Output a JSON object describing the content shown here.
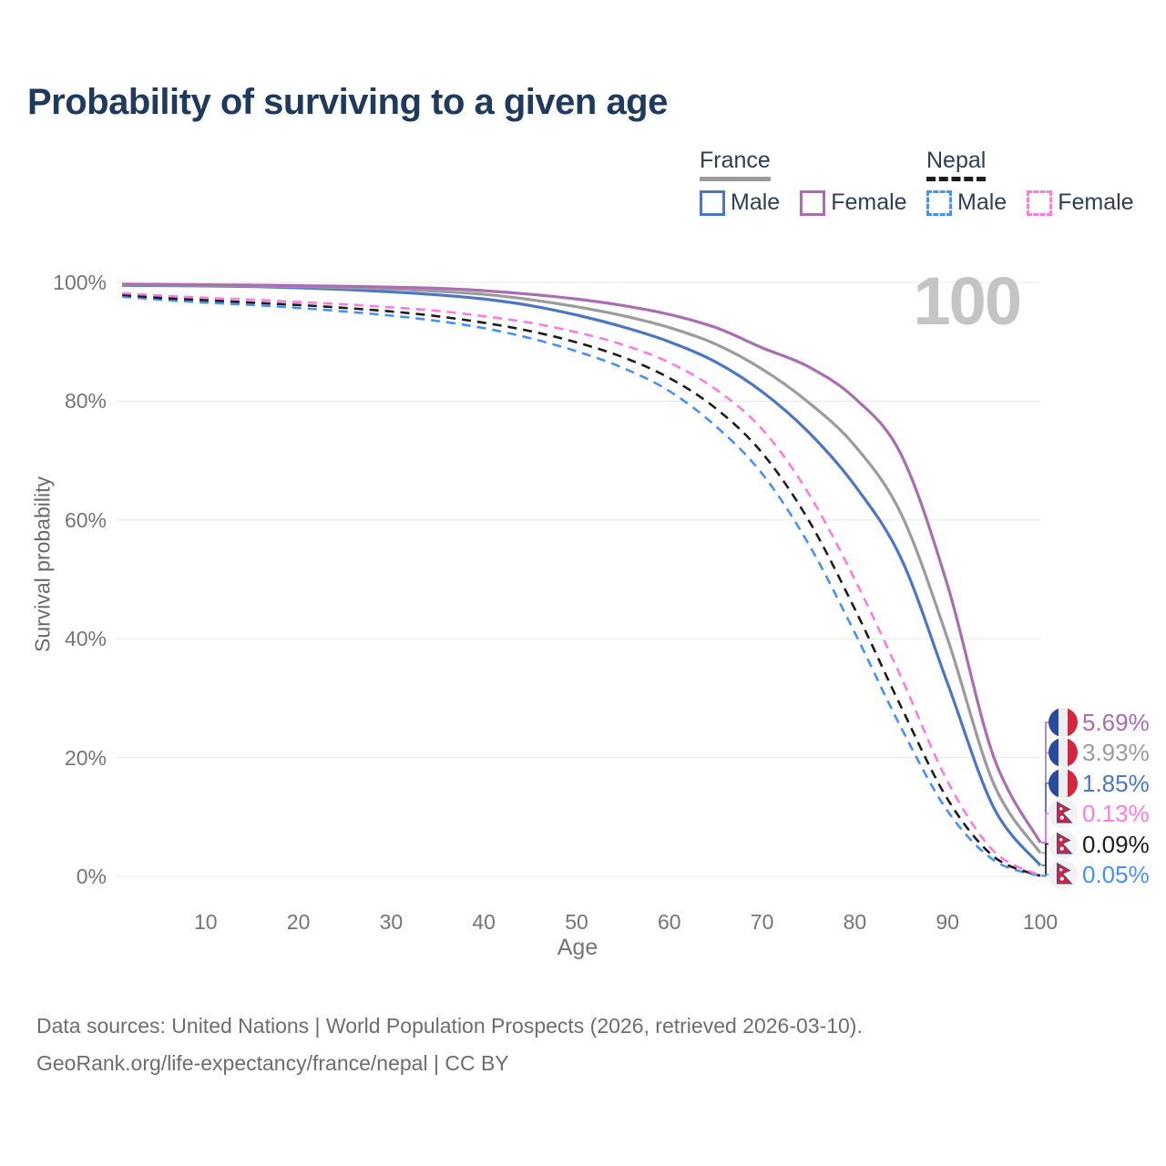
{
  "title": "Probability of surviving to a given age",
  "watermark": "100",
  "legend": {
    "groups": [
      {
        "country": "France",
        "line_color": "#9b9b9b",
        "line_dashed": false,
        "items": [
          {
            "label": "Male",
            "color": "#4a76c4",
            "dashed": false
          },
          {
            "label": "Female",
            "color": "#aa6cb3",
            "dashed": false
          }
        ]
      },
      {
        "country": "Nepal",
        "line_color": "#1c1c1c",
        "line_dashed": true,
        "items": [
          {
            "label": "Male",
            "color": "#4690fa",
            "dashed": true
          },
          {
            "label": "Female",
            "color": "#fc7be0",
            "dashed": true
          }
        ]
      }
    ]
  },
  "chart_data": {
    "type": "line",
    "title": "Probability of surviving to a given age",
    "xlabel": "Age",
    "ylabel": "Survival probability",
    "xlim": [
      0,
      100
    ],
    "ylim": [
      0,
      100
    ],
    "grid": "horizontal",
    "gridline_color": "#e7e7e7",
    "x_ticks": {
      "values": [
        10,
        20,
        30,
        40,
        50,
        60,
        70,
        80,
        90,
        100
      ],
      "labels": [
        "10",
        "20",
        "30",
        "40",
        "50",
        "60",
        "70",
        "80",
        "90",
        "100"
      ]
    },
    "y_ticks": {
      "values": [
        0,
        20,
        40,
        60,
        80,
        100
      ],
      "labels": [
        "0%",
        "20%",
        "40%",
        "60%",
        "80%",
        "100%"
      ]
    },
    "ages": [
      1,
      5,
      10,
      15,
      20,
      25,
      30,
      35,
      40,
      45,
      50,
      55,
      60,
      65,
      70,
      75,
      80,
      85,
      90,
      95,
      100
    ],
    "series": [
      {
        "id": "france-female",
        "name": "France Female",
        "color": "#aa6cb3",
        "dashed": false,
        "flag": "france",
        "end_label": "5.69%",
        "values": [
          99.7,
          99.65,
          99.6,
          99.55,
          99.45,
          99.35,
          99.2,
          99.0,
          98.6,
          98.0,
          97.2,
          96.1,
          94.6,
          92.4,
          89.0,
          85.8,
          80.5,
          71.0,
          49.0,
          20.0,
          5.69
        ]
      },
      {
        "id": "france-total",
        "name": "France",
        "color": "#9b9b9b",
        "dashed": false,
        "flag": "france",
        "end_label": "3.93%",
        "values": [
          99.6,
          99.55,
          99.5,
          99.4,
          99.3,
          99.1,
          98.9,
          98.5,
          98.0,
          97.1,
          95.9,
          94.4,
          92.4,
          89.6,
          85.4,
          79.8,
          72.5,
          61.0,
          40.0,
          15.5,
          3.93
        ]
      },
      {
        "id": "france-male",
        "name": "France Male",
        "color": "#4a76c4",
        "dashed": false,
        "flag": "france",
        "end_label": "1.85%",
        "values": [
          99.5,
          99.45,
          99.4,
          99.3,
          99.1,
          98.8,
          98.4,
          97.9,
          97.2,
          96.1,
          94.5,
          92.5,
          90.0,
          86.6,
          81.6,
          74.8,
          65.8,
          53.5,
          32.5,
          11.5,
          1.85
        ]
      },
      {
        "id": "nepal-female",
        "name": "Nepal Female",
        "color": "#fc7be0",
        "dashed": true,
        "flag": "nepal",
        "end_label": "0.13%",
        "values": [
          98.2,
          97.8,
          97.4,
          97.1,
          96.7,
          96.3,
          95.8,
          95.2,
          94.3,
          93.2,
          91.6,
          89.5,
          86.5,
          82.0,
          75.3,
          64.5,
          50.0,
          33.5,
          16.0,
          4.2,
          0.13
        ]
      },
      {
        "id": "nepal-total",
        "name": "Nepal",
        "color": "#1c1c1c",
        "dashed": true,
        "flag": "nepal",
        "end_label": "0.09%",
        "values": [
          97.9,
          97.4,
          97.0,
          96.6,
          96.2,
          95.7,
          95.1,
          94.3,
          93.2,
          91.8,
          89.9,
          87.4,
          83.9,
          78.8,
          71.3,
          60.0,
          45.0,
          28.5,
          13.0,
          3.3,
          0.09
        ]
      },
      {
        "id": "nepal-male",
        "name": "Nepal Male",
        "color": "#4690fa",
        "dashed": true,
        "flag": "nepal",
        "end_label": "0.05%",
        "values": [
          97.6,
          97.1,
          96.6,
          96.2,
          95.7,
          95.1,
          94.4,
          93.5,
          92.3,
          90.6,
          88.4,
          85.6,
          81.7,
          75.8,
          67.8,
          56.0,
          41.0,
          25.0,
          11.0,
          2.7,
          0.05
        ]
      }
    ],
    "flag_colors": {
      "france_blue": "#2b4a9f",
      "france_white": "#edeef0",
      "france_red": "#d4273e",
      "nepal_crimson": "#d0243c",
      "nepal_border": "#2b4a9f",
      "nepal_bg": "#f1f1f1"
    }
  },
  "footer": {
    "line1": "Data sources: United Nations | World Population Prospects (2026, retrieved 2026-03-10).",
    "line2": "GeoRank.org/life-expectancy/france/nepal | CC BY"
  }
}
